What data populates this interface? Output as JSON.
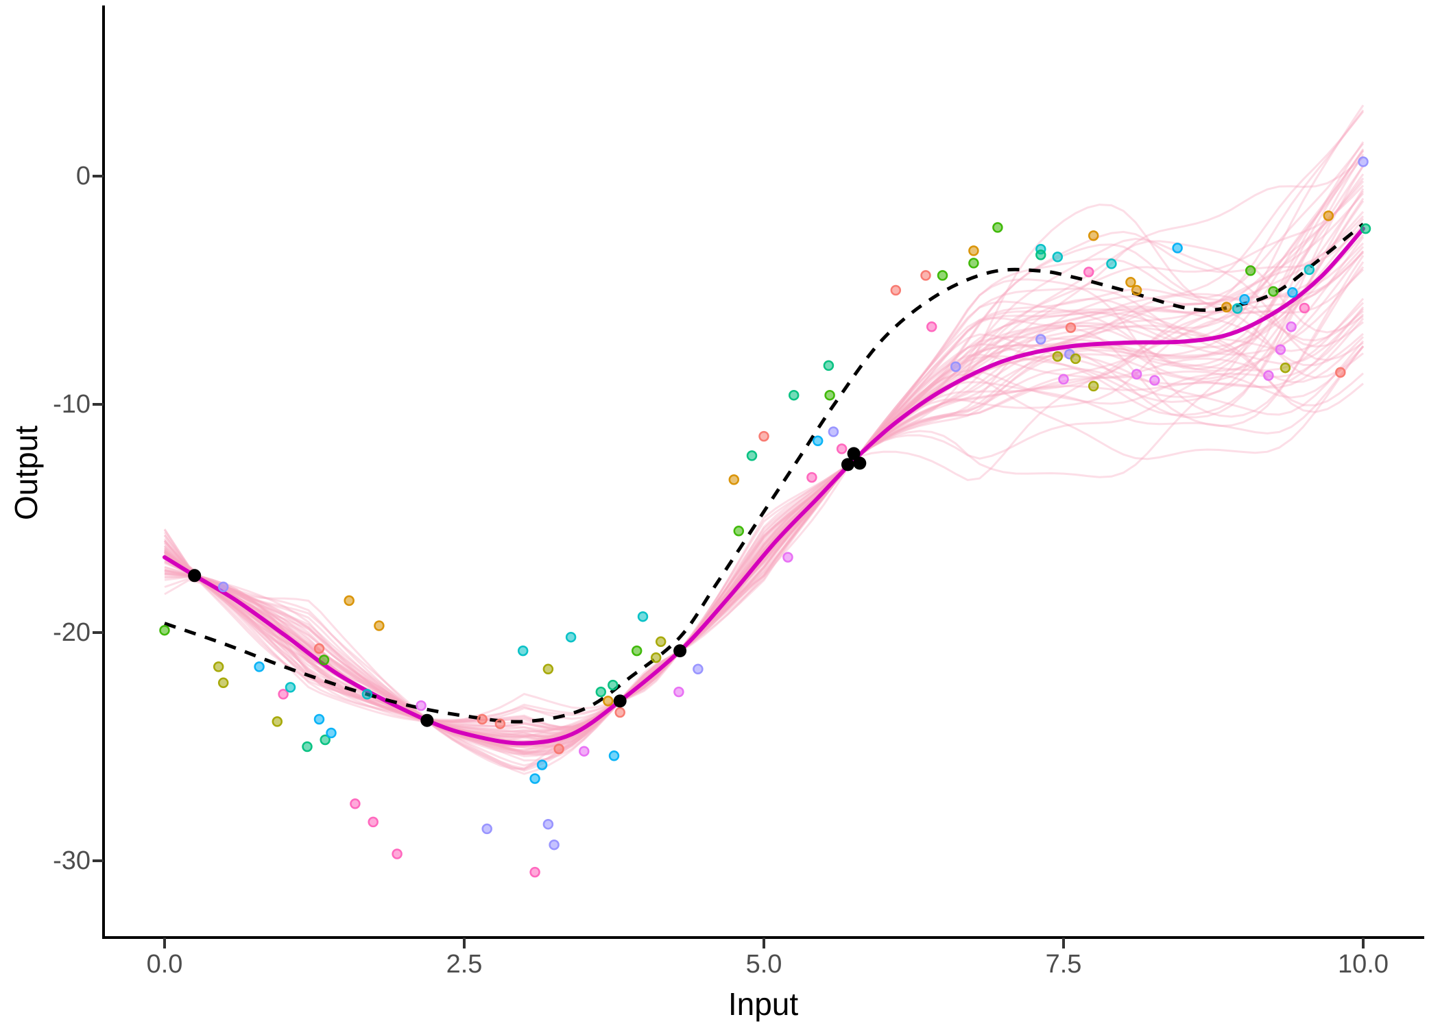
{
  "figure": {
    "kind": "gaussian-process-regression-plot",
    "background": "#FFFFFF",
    "grid": false,
    "legend": null
  },
  "axes": {
    "x": {
      "label": "Input",
      "tick_labels": [
        "0.0",
        "2.5",
        "5.0",
        "7.5",
        "10.0"
      ],
      "tick_values": [
        0,
        2.5,
        5,
        7.5,
        10
      ]
    },
    "y": {
      "label": "Output",
      "tick_labels": [
        "0",
        "-10",
        "-20",
        "-30"
      ],
      "tick_values": [
        0,
        -10,
        -20,
        -30
      ]
    }
  },
  "style": {
    "axis_color": "#000000",
    "tick_color": "#333333",
    "tick_label_color": "#4D4D4D",
    "mean_line_color": "#D400BB",
    "true_line_color": "#000000",
    "sample_line_color": "#F8A8C0",
    "training_point_color": "#000000"
  },
  "palette": {
    "salmon": "#F8766D",
    "gold": "#D89000",
    "olive": "#A3A500",
    "green": "#39B600",
    "spring": "#00BF7D",
    "teal": "#00BFC4",
    "sky": "#00B0F6",
    "periwinkle": "#9590FF",
    "orchid": "#E76BF3",
    "pink": "#FF62BC"
  },
  "chart_data": {
    "type": "line",
    "title": "",
    "xlabel": "Input",
    "ylabel": "Output",
    "xlim": [
      0,
      10
    ],
    "ylim": [
      -31.5,
      5.5
    ],
    "grid": false,
    "legend_position": "none",
    "series": [
      {
        "name": "posterior-samples",
        "type": "line-ensemble",
        "count": 58,
        "color": "#F8A8C0",
        "opacity": 0.38,
        "width": 3,
        "description": "translucent pink GP posterior sample curves, pinched at training points and fanning out elsewhere (widest at right edge, spanning about +5 to -9 at x=10)"
      },
      {
        "name": "posterior-mean",
        "type": "line",
        "color": "#D400BB",
        "width": 6,
        "points": [
          [
            0,
            -16.7
          ],
          [
            0.25,
            -17.5
          ],
          [
            0.6,
            -18.6
          ],
          [
            1.0,
            -20.1
          ],
          [
            1.5,
            -22.0
          ],
          [
            2.19,
            -23.85
          ],
          [
            2.6,
            -24.55
          ],
          [
            3.0,
            -24.85
          ],
          [
            3.4,
            -24.45
          ],
          [
            3.8,
            -23.0
          ],
          [
            4.3,
            -20.8
          ],
          [
            4.7,
            -18.5
          ],
          [
            5.1,
            -16.0
          ],
          [
            5.45,
            -14.1
          ],
          [
            5.76,
            -12.4
          ],
          [
            6.1,
            -10.8
          ],
          [
            6.5,
            -9.35
          ],
          [
            7.0,
            -8.1
          ],
          [
            7.5,
            -7.5
          ],
          [
            8.0,
            -7.3
          ],
          [
            8.5,
            -7.25
          ],
          [
            8.9,
            -6.9
          ],
          [
            9.3,
            -5.85
          ],
          [
            9.65,
            -4.4
          ],
          [
            10,
            -2.3
          ]
        ]
      },
      {
        "name": "true-function",
        "type": "line",
        "style": "dashed",
        "color": "#000000",
        "width": 5,
        "points": [
          [
            0,
            -19.6
          ],
          [
            0.5,
            -20.5
          ],
          [
            1.0,
            -21.5
          ],
          [
            1.5,
            -22.4
          ],
          [
            2.0,
            -23.15
          ],
          [
            2.5,
            -23.65
          ],
          [
            3.0,
            -23.9
          ],
          [
            3.5,
            -23.35
          ],
          [
            3.9,
            -21.9
          ],
          [
            4.3,
            -20.2
          ],
          [
            4.6,
            -17.9
          ],
          [
            5.0,
            -14.7
          ],
          [
            5.3,
            -12.3
          ],
          [
            5.6,
            -9.9
          ],
          [
            6.0,
            -7.1
          ],
          [
            6.45,
            -5.2
          ],
          [
            6.9,
            -4.2
          ],
          [
            7.3,
            -4.15
          ],
          [
            7.6,
            -4.45
          ],
          [
            8.0,
            -5.0
          ],
          [
            8.6,
            -5.85
          ],
          [
            9.0,
            -5.6
          ],
          [
            9.3,
            -5.0
          ],
          [
            9.6,
            -3.8
          ],
          [
            10,
            -2.1
          ]
        ]
      },
      {
        "name": "observations",
        "type": "scatter",
        "point_radius": 6.5,
        "fill_opacity": 0.55,
        "points": [
          {
            "x": 0.0,
            "y": -19.9,
            "color": "#39B600"
          },
          {
            "x": 0.45,
            "y": -21.5,
            "color": "#A3A500"
          },
          {
            "x": 0.49,
            "y": -18.0,
            "color": "#9590FF"
          },
          {
            "x": 0.49,
            "y": -22.2,
            "color": "#A3A500"
          },
          {
            "x": 0.79,
            "y": -21.5,
            "color": "#00B0F6"
          },
          {
            "x": 0.94,
            "y": -23.9,
            "color": "#A3A500"
          },
          {
            "x": 0.99,
            "y": -22.7,
            "color": "#FF62BC"
          },
          {
            "x": 1.05,
            "y": -22.4,
            "color": "#00BFC4"
          },
          {
            "x": 1.19,
            "y": -25.0,
            "color": "#00BF7D"
          },
          {
            "x": 1.29,
            "y": -20.7,
            "color": "#F8766D"
          },
          {
            "x": 1.29,
            "y": -23.8,
            "color": "#00B0F6"
          },
          {
            "x": 1.33,
            "y": -21.2,
            "color": "#39B600"
          },
          {
            "x": 1.34,
            "y": -24.7,
            "color": "#00BF7D"
          },
          {
            "x": 1.39,
            "y": -24.4,
            "color": "#00B0F6"
          },
          {
            "x": 1.54,
            "y": -18.6,
            "color": "#D89000"
          },
          {
            "x": 1.59,
            "y": -27.5,
            "color": "#FF62BC"
          },
          {
            "x": 1.69,
            "y": -22.7,
            "color": "#00BFC4"
          },
          {
            "x": 1.74,
            "y": -28.3,
            "color": "#FF62BC"
          },
          {
            "x": 1.79,
            "y": -19.7,
            "color": "#D89000"
          },
          {
            "x": 1.94,
            "y": -29.7,
            "color": "#FF62BC"
          },
          {
            "x": 2.14,
            "y": -23.2,
            "color": "#E76BF3"
          },
          {
            "x": 2.65,
            "y": -23.8,
            "color": "#F8766D"
          },
          {
            "x": 2.69,
            "y": -28.6,
            "color": "#9590FF"
          },
          {
            "x": 2.8,
            "y": -24.0,
            "color": "#F8766D"
          },
          {
            "x": 2.99,
            "y": -20.8,
            "color": "#00BFC4"
          },
          {
            "x": 3.09,
            "y": -26.4,
            "color": "#00B0F6"
          },
          {
            "x": 3.09,
            "y": -30.5,
            "color": "#FF62BC"
          },
          {
            "x": 3.15,
            "y": -25.8,
            "color": "#00B0F6"
          },
          {
            "x": 3.2,
            "y": -21.6,
            "color": "#A3A500"
          },
          {
            "x": 3.2,
            "y": -28.4,
            "color": "#9590FF"
          },
          {
            "x": 3.25,
            "y": -29.3,
            "color": "#9590FF"
          },
          {
            "x": 3.29,
            "y": -25.1,
            "color": "#F8766D"
          },
          {
            "x": 3.39,
            "y": -20.2,
            "color": "#00BFC4"
          },
          {
            "x": 3.5,
            "y": -25.2,
            "color": "#E76BF3"
          },
          {
            "x": 3.64,
            "y": -22.6,
            "color": "#00BF7D"
          },
          {
            "x": 3.7,
            "y": -23.0,
            "color": "#D89000"
          },
          {
            "x": 3.74,
            "y": -22.3,
            "color": "#00BF7D"
          },
          {
            "x": 3.75,
            "y": -25.4,
            "color": "#00B0F6"
          },
          {
            "x": 3.8,
            "y": -23.5,
            "color": "#F8766D"
          },
          {
            "x": 3.94,
            "y": -20.8,
            "color": "#39B600"
          },
          {
            "x": 3.99,
            "y": -19.3,
            "color": "#00BFC4"
          },
          {
            "x": 4.1,
            "y": -21.1,
            "color": "#A3A500"
          },
          {
            "x": 4.14,
            "y": -20.4,
            "color": "#A3A500"
          },
          {
            "x": 4.29,
            "y": -22.6,
            "color": "#E76BF3"
          },
          {
            "x": 4.45,
            "y": -21.6,
            "color": "#9590FF"
          },
          {
            "x": 4.75,
            "y": -13.3,
            "color": "#D89000"
          },
          {
            "x": 4.79,
            "y": -15.55,
            "color": "#39B600"
          },
          {
            "x": 4.9,
            "y": -12.25,
            "color": "#00BF7D"
          },
          {
            "x": 5.0,
            "y": -11.4,
            "color": "#F8766D"
          },
          {
            "x": 5.2,
            "y": -16.7,
            "color": "#E76BF3"
          },
          {
            "x": 5.25,
            "y": -9.6,
            "color": "#00BF7D"
          },
          {
            "x": 5.4,
            "y": -13.2,
            "color": "#FF62BC"
          },
          {
            "x": 5.45,
            "y": -11.6,
            "color": "#00B0F6"
          },
          {
            "x": 5.54,
            "y": -8.3,
            "color": "#00BF7D"
          },
          {
            "x": 5.55,
            "y": -9.6,
            "color": "#39B600"
          },
          {
            "x": 5.58,
            "y": -11.2,
            "color": "#9590FF"
          },
          {
            "x": 5.65,
            "y": -11.95,
            "color": "#FF62BC"
          },
          {
            "x": 6.1,
            "y": -5.0,
            "color": "#F8766D"
          },
          {
            "x": 6.35,
            "y": -4.35,
            "color": "#F8766D"
          },
          {
            "x": 6.4,
            "y": -6.6,
            "color": "#FF62BC"
          },
          {
            "x": 6.49,
            "y": -4.35,
            "color": "#39B600"
          },
          {
            "x": 6.6,
            "y": -8.35,
            "color": "#9590FF"
          },
          {
            "x": 6.75,
            "y": -3.27,
            "color": "#D89000"
          },
          {
            "x": 6.75,
            "y": -3.81,
            "color": "#39B600"
          },
          {
            "x": 6.95,
            "y": -2.25,
            "color": "#39B600"
          },
          {
            "x": 7.31,
            "y": -3.2,
            "color": "#00BFC4"
          },
          {
            "x": 7.31,
            "y": -3.45,
            "color": "#00BF7D"
          },
          {
            "x": 7.45,
            "y": -3.54,
            "color": "#00BFC4"
          },
          {
            "x": 7.31,
            "y": -7.15,
            "color": "#9590FF"
          },
          {
            "x": 7.45,
            "y": -7.9,
            "color": "#A3A500"
          },
          {
            "x": 7.5,
            "y": -8.9,
            "color": "#E76BF3"
          },
          {
            "x": 7.55,
            "y": -7.8,
            "color": "#9590FF"
          },
          {
            "x": 7.56,
            "y": -6.64,
            "color": "#F8766D"
          },
          {
            "x": 7.6,
            "y": -8.0,
            "color": "#A3A500"
          },
          {
            "x": 7.71,
            "y": -4.2,
            "color": "#FF62BC"
          },
          {
            "x": 7.75,
            "y": -2.61,
            "color": "#D89000"
          },
          {
            "x": 7.75,
            "y": -9.2,
            "color": "#A3A500"
          },
          {
            "x": 7.9,
            "y": -3.84,
            "color": "#00BFC4"
          },
          {
            "x": 8.06,
            "y": -4.65,
            "color": "#D89000"
          },
          {
            "x": 8.11,
            "y": -5.0,
            "color": "#D89000"
          },
          {
            "x": 8.11,
            "y": -8.68,
            "color": "#E76BF3"
          },
          {
            "x": 8.26,
            "y": -8.95,
            "color": "#E76BF3"
          },
          {
            "x": 8.45,
            "y": -3.15,
            "color": "#00B0F6"
          },
          {
            "x": 8.86,
            "y": -5.74,
            "color": "#D89000"
          },
          {
            "x": 8.95,
            "y": -5.8,
            "color": "#00BFC4"
          },
          {
            "x": 9.01,
            "y": -5.4,
            "color": "#00B0F6"
          },
          {
            "x": 9.06,
            "y": -4.14,
            "color": "#39B600"
          },
          {
            "x": 9.21,
            "y": -8.74,
            "color": "#E76BF3"
          },
          {
            "x": 9.25,
            "y": -5.05,
            "color": "#39B600"
          },
          {
            "x": 9.31,
            "y": -7.6,
            "color": "#E76BF3"
          },
          {
            "x": 9.35,
            "y": -8.4,
            "color": "#A3A500"
          },
          {
            "x": 9.4,
            "y": -6.6,
            "color": "#E76BF3"
          },
          {
            "x": 9.41,
            "y": -5.1,
            "color": "#00B0F6"
          },
          {
            "x": 9.51,
            "y": -5.78,
            "color": "#FF62BC"
          },
          {
            "x": 9.55,
            "y": -4.1,
            "color": "#00BFC4"
          },
          {
            "x": 9.71,
            "y": -1.74,
            "color": "#D89000"
          },
          {
            "x": 9.81,
            "y": -8.6,
            "color": "#F8766D"
          },
          {
            "x": 10.0,
            "y": 0.63,
            "color": "#9590FF"
          },
          {
            "x": 10.02,
            "y": -2.3,
            "color": "#00BF7D"
          }
        ]
      },
      {
        "name": "training-data",
        "type": "scatter",
        "color": "#000000",
        "point_radius": 9.5,
        "points": [
          [
            0.25,
            -17.5
          ],
          [
            2.19,
            -23.85
          ],
          [
            3.8,
            -23.0
          ],
          [
            4.3,
            -20.8
          ],
          [
            5.7,
            -12.64
          ],
          [
            5.75,
            -12.16
          ],
          [
            5.8,
            -12.58
          ]
        ]
      }
    ]
  }
}
